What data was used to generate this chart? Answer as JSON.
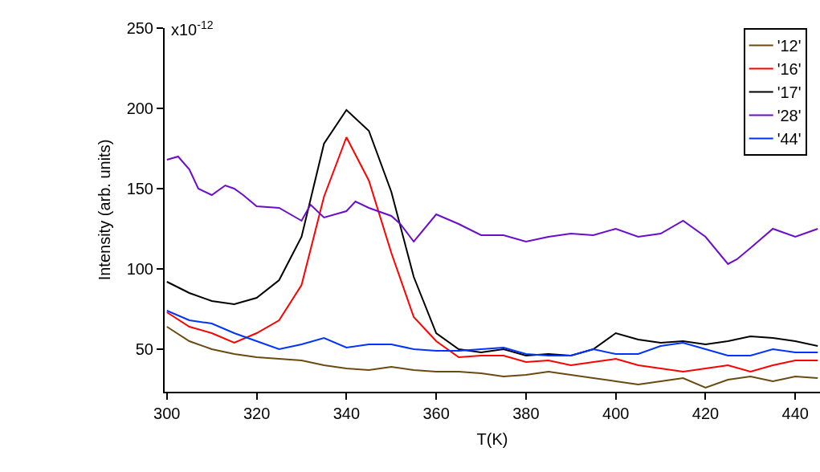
{
  "chart_data": {
    "type": "line",
    "xlabel": "T(K)",
    "ylabel": "Intensity (arb. units)",
    "xlim": [
      299.5,
      445.5
    ],
    "xticks": [
      300,
      320,
      340,
      360,
      380,
      400,
      420,
      440
    ],
    "ylim": [
      23.5,
      250
    ],
    "yticks": [
      50,
      100,
      150,
      200,
      250
    ],
    "annotations": [
      "x10$^{-12}$"
    ],
    "legend": "top right",
    "line_style": "solid",
    "marker": "none",
    "series": [
      {
        "name": "'12'",
        "color": "#6b4a12",
        "x": [
          300,
          305,
          310,
          315,
          320,
          325,
          330,
          335,
          340,
          345,
          350,
          355,
          360,
          365,
          370,
          375,
          380,
          385,
          390,
          395,
          400,
          405,
          410,
          415,
          420,
          425,
          430,
          435,
          440,
          445
        ],
        "values": [
          64,
          55,
          50,
          47,
          45,
          44,
          43,
          40,
          38,
          37,
          39,
          37,
          36,
          36,
          35,
          33,
          34,
          36,
          34,
          32,
          30,
          28,
          30,
          32,
          26,
          31,
          33,
          30,
          33,
          32
        ]
      },
      {
        "name": "'16'",
        "color": "#ff0000",
        "x": [
          300,
          305,
          310,
          315,
          320,
          325,
          330,
          335,
          340,
          345,
          350,
          355,
          360,
          365,
          370,
          375,
          380,
          385,
          390,
          395,
          400,
          405,
          410,
          415,
          420,
          425,
          430,
          435,
          440,
          445
        ],
        "values": [
          73,
          64,
          60,
          54,
          60,
          68,
          90,
          145,
          182,
          155,
          110,
          70,
          55,
          45,
          46,
          46,
          42,
          43,
          40,
          42,
          44,
          40,
          38,
          36,
          38,
          40,
          36,
          40,
          43,
          43
        ]
      },
      {
        "name": "'17'",
        "color": "#000000",
        "x": [
          300,
          305,
          310,
          315,
          320,
          325,
          330,
          335,
          340,
          345,
          350,
          355,
          360,
          365,
          370,
          375,
          380,
          385,
          390,
          395,
          400,
          405,
          410,
          415,
          420,
          425,
          430,
          435,
          440,
          445
        ],
        "values": [
          92,
          85,
          80,
          78,
          82,
          93,
          120,
          178,
          199,
          186,
          148,
          95,
          60,
          50,
          48,
          50,
          46,
          47,
          46,
          50,
          60,
          56,
          54,
          55,
          53,
          55,
          58,
          57,
          55,
          52
        ]
      },
      {
        "name": "'28'",
        "color": "#6a0dcc",
        "x": [
          300,
          302.5,
          305,
          307,
          310,
          313,
          315,
          317,
          320,
          325,
          330,
          332,
          335,
          340,
          342,
          345,
          350,
          352,
          355,
          360,
          365,
          370,
          375,
          380,
          385,
          390,
          395,
          400,
          405,
          410,
          415,
          420,
          425,
          427,
          430,
          435,
          440,
          445
        ],
        "values": [
          168,
          170,
          162,
          150,
          146,
          152,
          150,
          146,
          139,
          138,
          130,
          140,
          132,
          136,
          142,
          138,
          133,
          128,
          117,
          134,
          128,
          121,
          121,
          117,
          120,
          122,
          121,
          125,
          120,
          122,
          130,
          120,
          103,
          106,
          113,
          125,
          120,
          125
        ]
      },
      {
        "name": "'44'",
        "color": "#0033ff",
        "x": [
          300,
          305,
          310,
          315,
          320,
          325,
          330,
          335,
          340,
          345,
          350,
          355,
          360,
          365,
          370,
          375,
          380,
          385,
          390,
          395,
          400,
          405,
          410,
          415,
          420,
          425,
          430,
          435,
          440,
          445
        ],
        "values": [
          74,
          68,
          66,
          60,
          55,
          50,
          53,
          57,
          51,
          53,
          53,
          50,
          49,
          49,
          50,
          51,
          47,
          46,
          46,
          50,
          47,
          47,
          52,
          54,
          50,
          46,
          46,
          50,
          48,
          48
        ]
      }
    ]
  }
}
